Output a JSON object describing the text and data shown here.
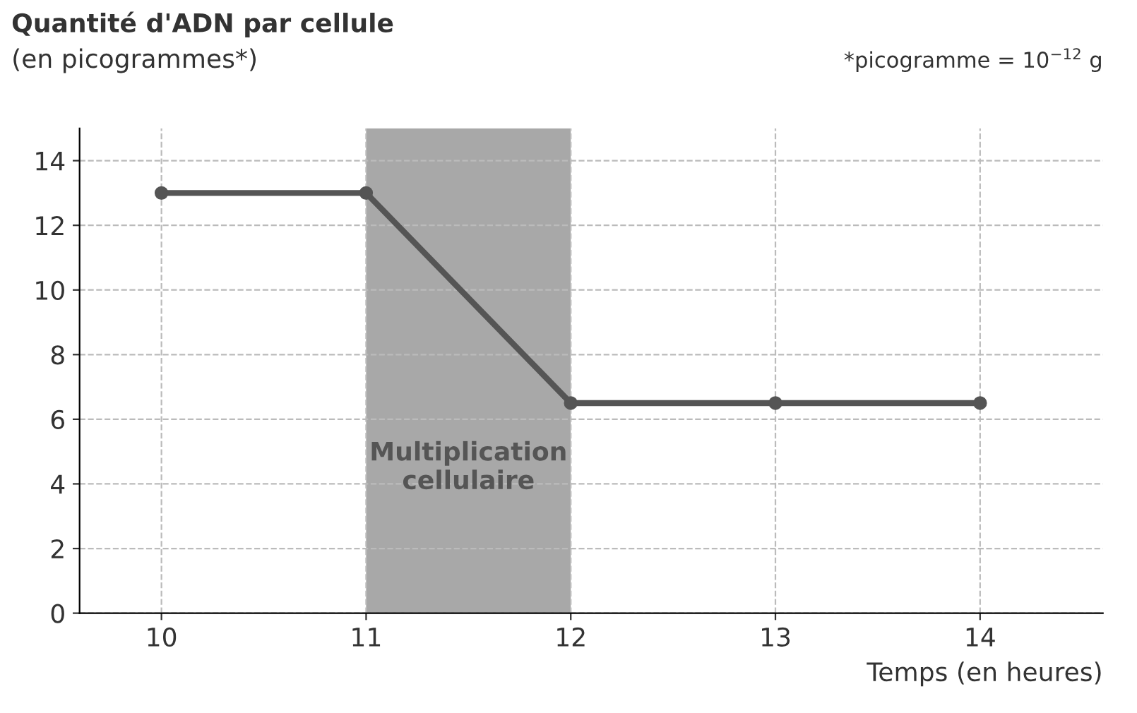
{
  "chart_data": {
    "type": "line",
    "title": "Quantité d'ADN par cellule",
    "ylabel": "(en picogrammes*)",
    "xlabel": "Temps (en heures)",
    "x": [
      10,
      11,
      12,
      13,
      14
    ],
    "series": [
      {
        "color": "#555555",
        "values": [
          13,
          13,
          6.5,
          6.5,
          6.5
        ]
      }
    ],
    "xlim": [
      9.6,
      14.6
    ],
    "xticks": [
      10,
      11,
      12,
      13,
      14
    ],
    "ylim": [
      0,
      15
    ],
    "yticks": [
      0,
      2,
      4,
      6,
      8,
      10,
      12,
      14
    ],
    "bands": [
      {
        "axis": "x",
        "from": 11,
        "to": 12,
        "label": "Multiplication\ncellulaire",
        "color": "#a8a8a8"
      }
    ],
    "annotations": [
      "*picogramme = 10$^{−12}$ g"
    ],
    "grid": true,
    "marker": "circle",
    "line_style": "solid",
    "legend": false
  }
}
